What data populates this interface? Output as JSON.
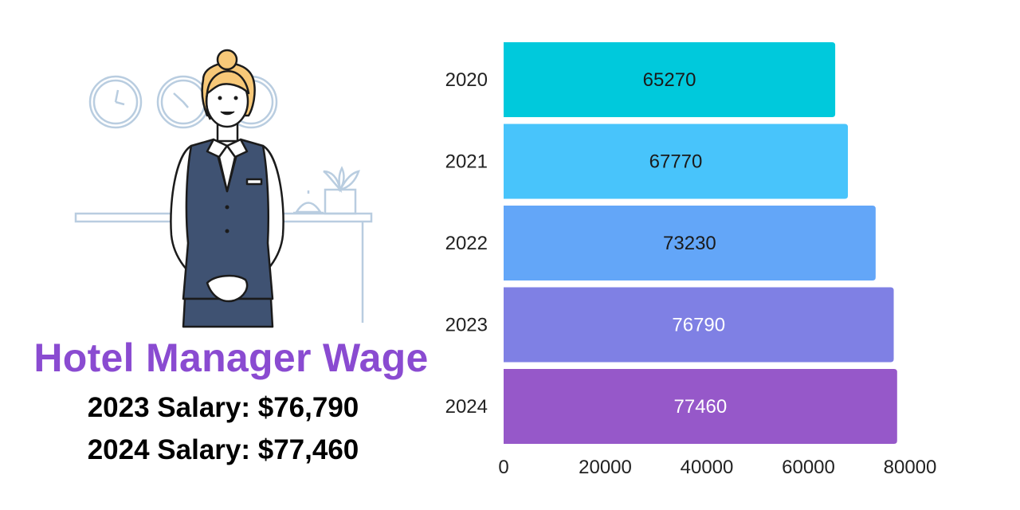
{
  "headline": {
    "title": "Hotel Manager Wage",
    "salary_2023": "2023 Salary: $76,790",
    "salary_2024": "2024 Salary: $77,460"
  },
  "colors": {
    "title": "#8a4bd1",
    "bar_label_dark": "#1a1a1a",
    "bar_label_light": "#ffffff"
  },
  "chart_data": {
    "type": "bar",
    "orientation": "horizontal",
    "categories": [
      "2020",
      "2021",
      "2022",
      "2023",
      "2024"
    ],
    "values": [
      65270,
      67770,
      73230,
      76790,
      77460
    ],
    "value_labels": [
      "65270",
      "67770",
      "73230",
      "76790",
      "77460"
    ],
    "bar_colors": [
      "#00c9dc",
      "#48c4fb",
      "#63a6f8",
      "#7f80e4",
      "#9658c9"
    ],
    "label_colors": [
      "#1a1a1a",
      "#1a1a1a",
      "#1a1a1a",
      "#ffffff",
      "#ffffff"
    ],
    "xlim": [
      0,
      80000
    ],
    "xticks": [
      0,
      20000,
      40000,
      60000,
      80000
    ],
    "xtick_labels": [
      "0",
      "20000",
      "40000",
      "60000",
      "80000"
    ],
    "title": "",
    "xlabel": "",
    "ylabel": "",
    "grid": false,
    "legend": "none"
  }
}
